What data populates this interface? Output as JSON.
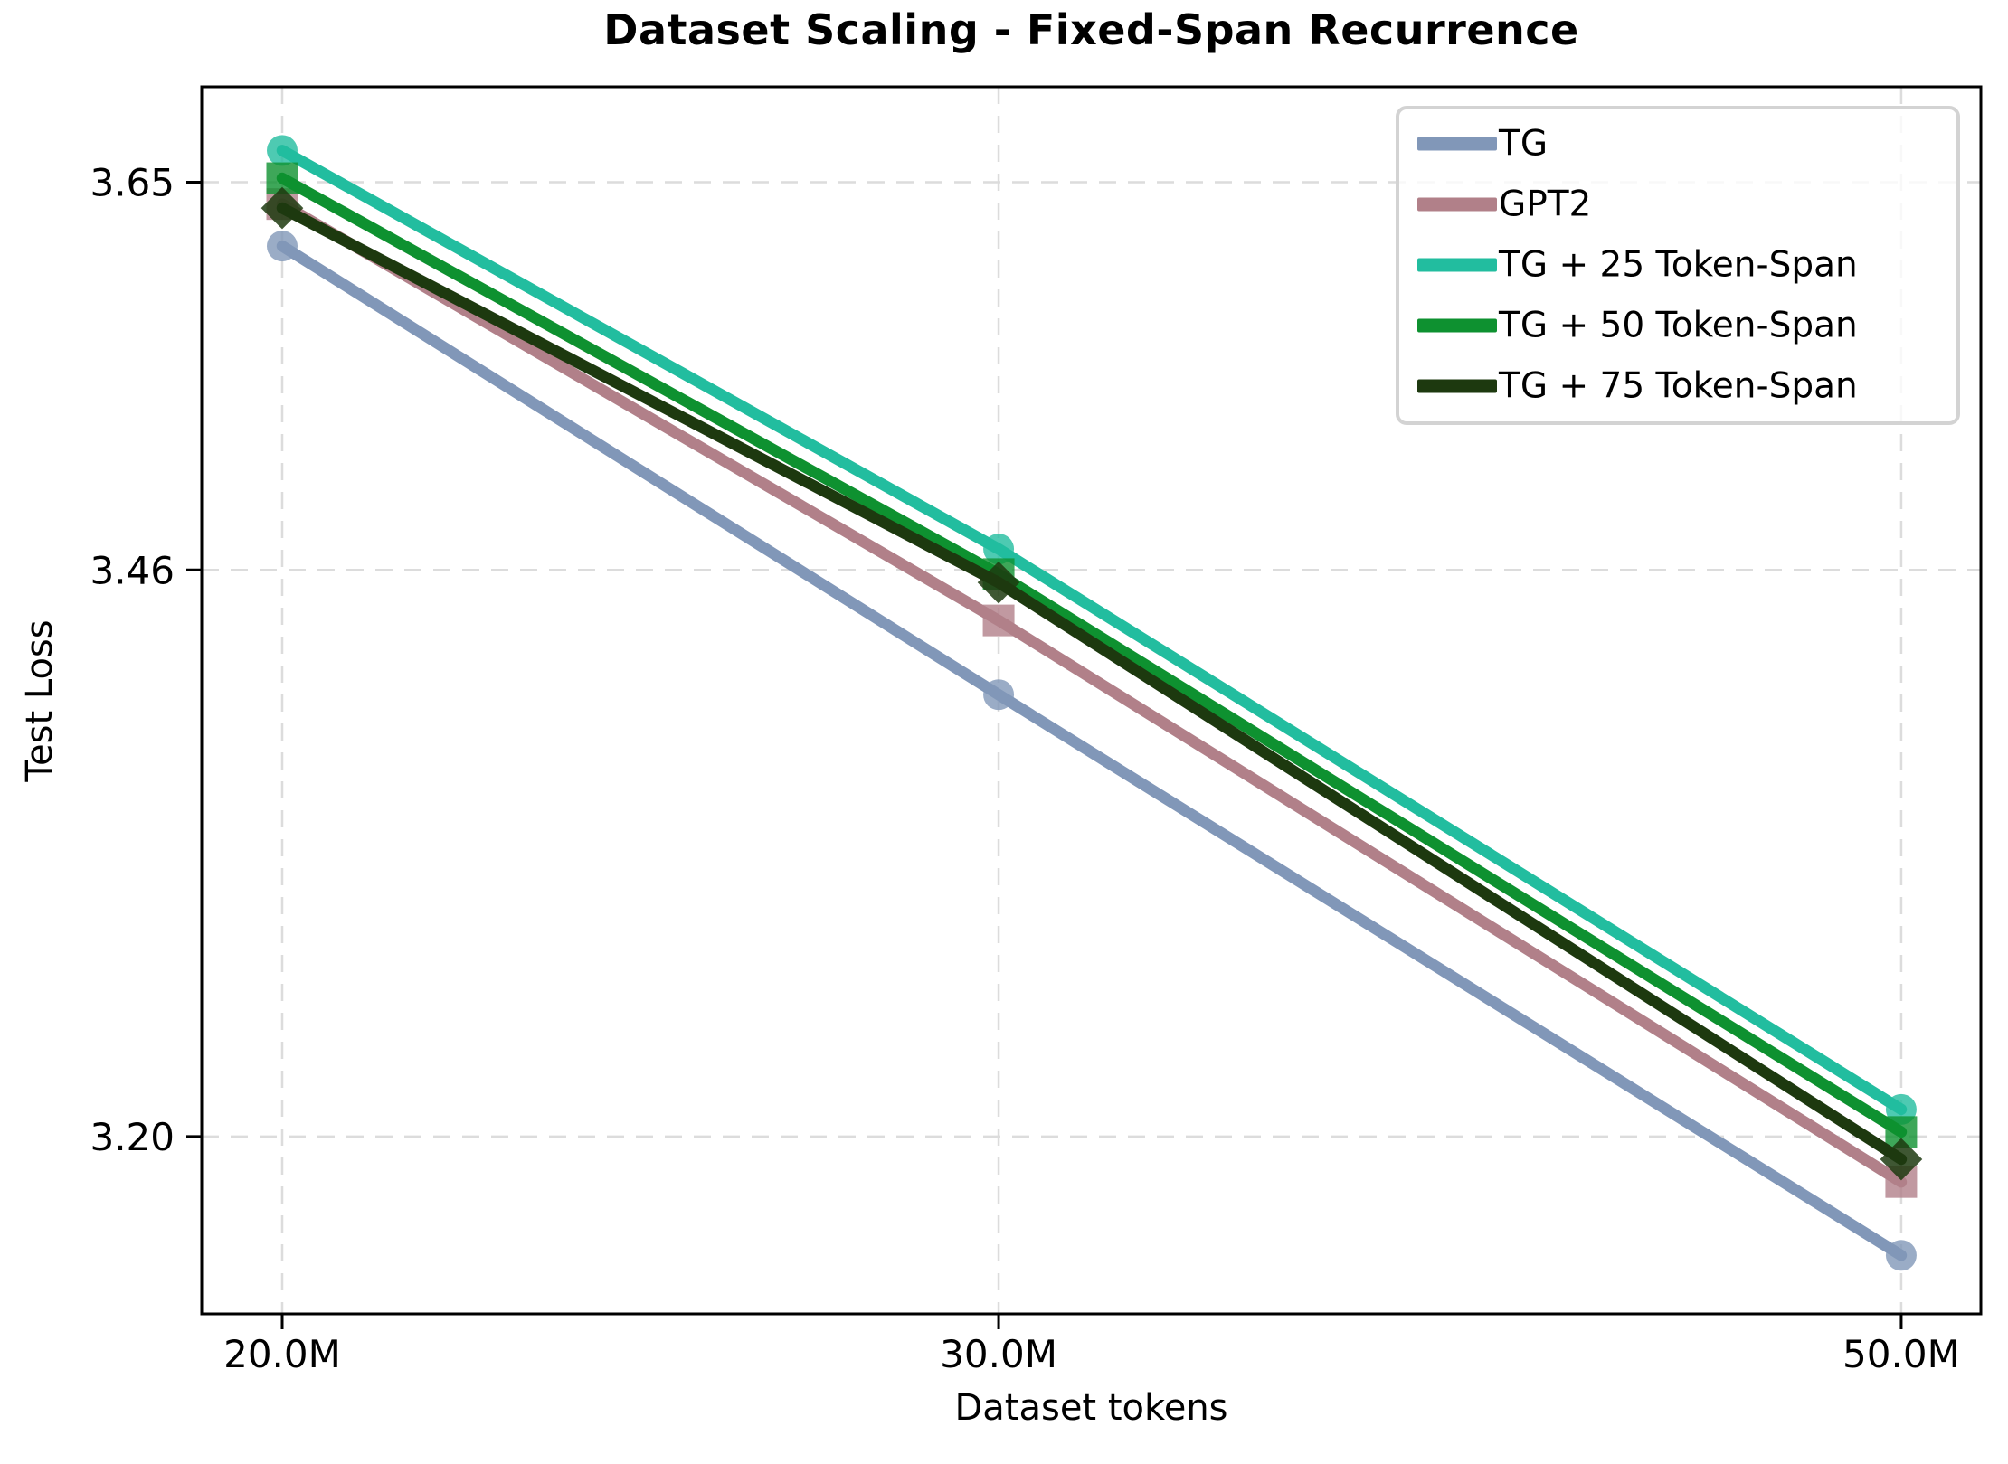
{
  "chart_data": {
    "type": "line",
    "title": "Dataset Scaling - Fixed-Span Recurrence",
    "xlabel": "Dataset tokens",
    "ylabel": "Test Loss",
    "x_scale": "log",
    "y_scale": "log",
    "grid": true,
    "grid_style": "dashed",
    "legend_position": "upper right",
    "x": [
      20000000,
      30000000,
      50000000
    ],
    "x_tick_labels": [
      "20.0M",
      "30.0M",
      "50.0M"
    ],
    "y_ticks": [
      3.65,
      3.46,
      3.2
    ],
    "y_tick_labels": [
      "3.65",
      "3.46",
      "3.20"
    ],
    "series": [
      {
        "name": "TG",
        "color": "#8197b8",
        "marker": "circle",
        "values": [
          3.618,
          3.401,
          3.148
        ]
      },
      {
        "name": "GPT2",
        "color": "#b18089",
        "marker": "square",
        "values": [
          3.639,
          3.436,
          3.18
        ]
      },
      {
        "name": "TG + 25 Token-Span",
        "color": "#22bd9f",
        "marker": "circle",
        "values": [
          3.666,
          3.47,
          3.212
        ]
      },
      {
        "name": "TG + 50 Token-Span",
        "color": "#0e9130",
        "marker": "square",
        "values": [
          3.652,
          3.458,
          3.202
        ]
      },
      {
        "name": "TG + 75 Token-Span",
        "color": "#1d390f",
        "marker": "diamond",
        "values": [
          3.637,
          3.454,
          3.19
        ]
      }
    ],
    "colors": {
      "grid": "#dcdcdc",
      "spine": "#000000",
      "background": "#ffffff"
    }
  }
}
